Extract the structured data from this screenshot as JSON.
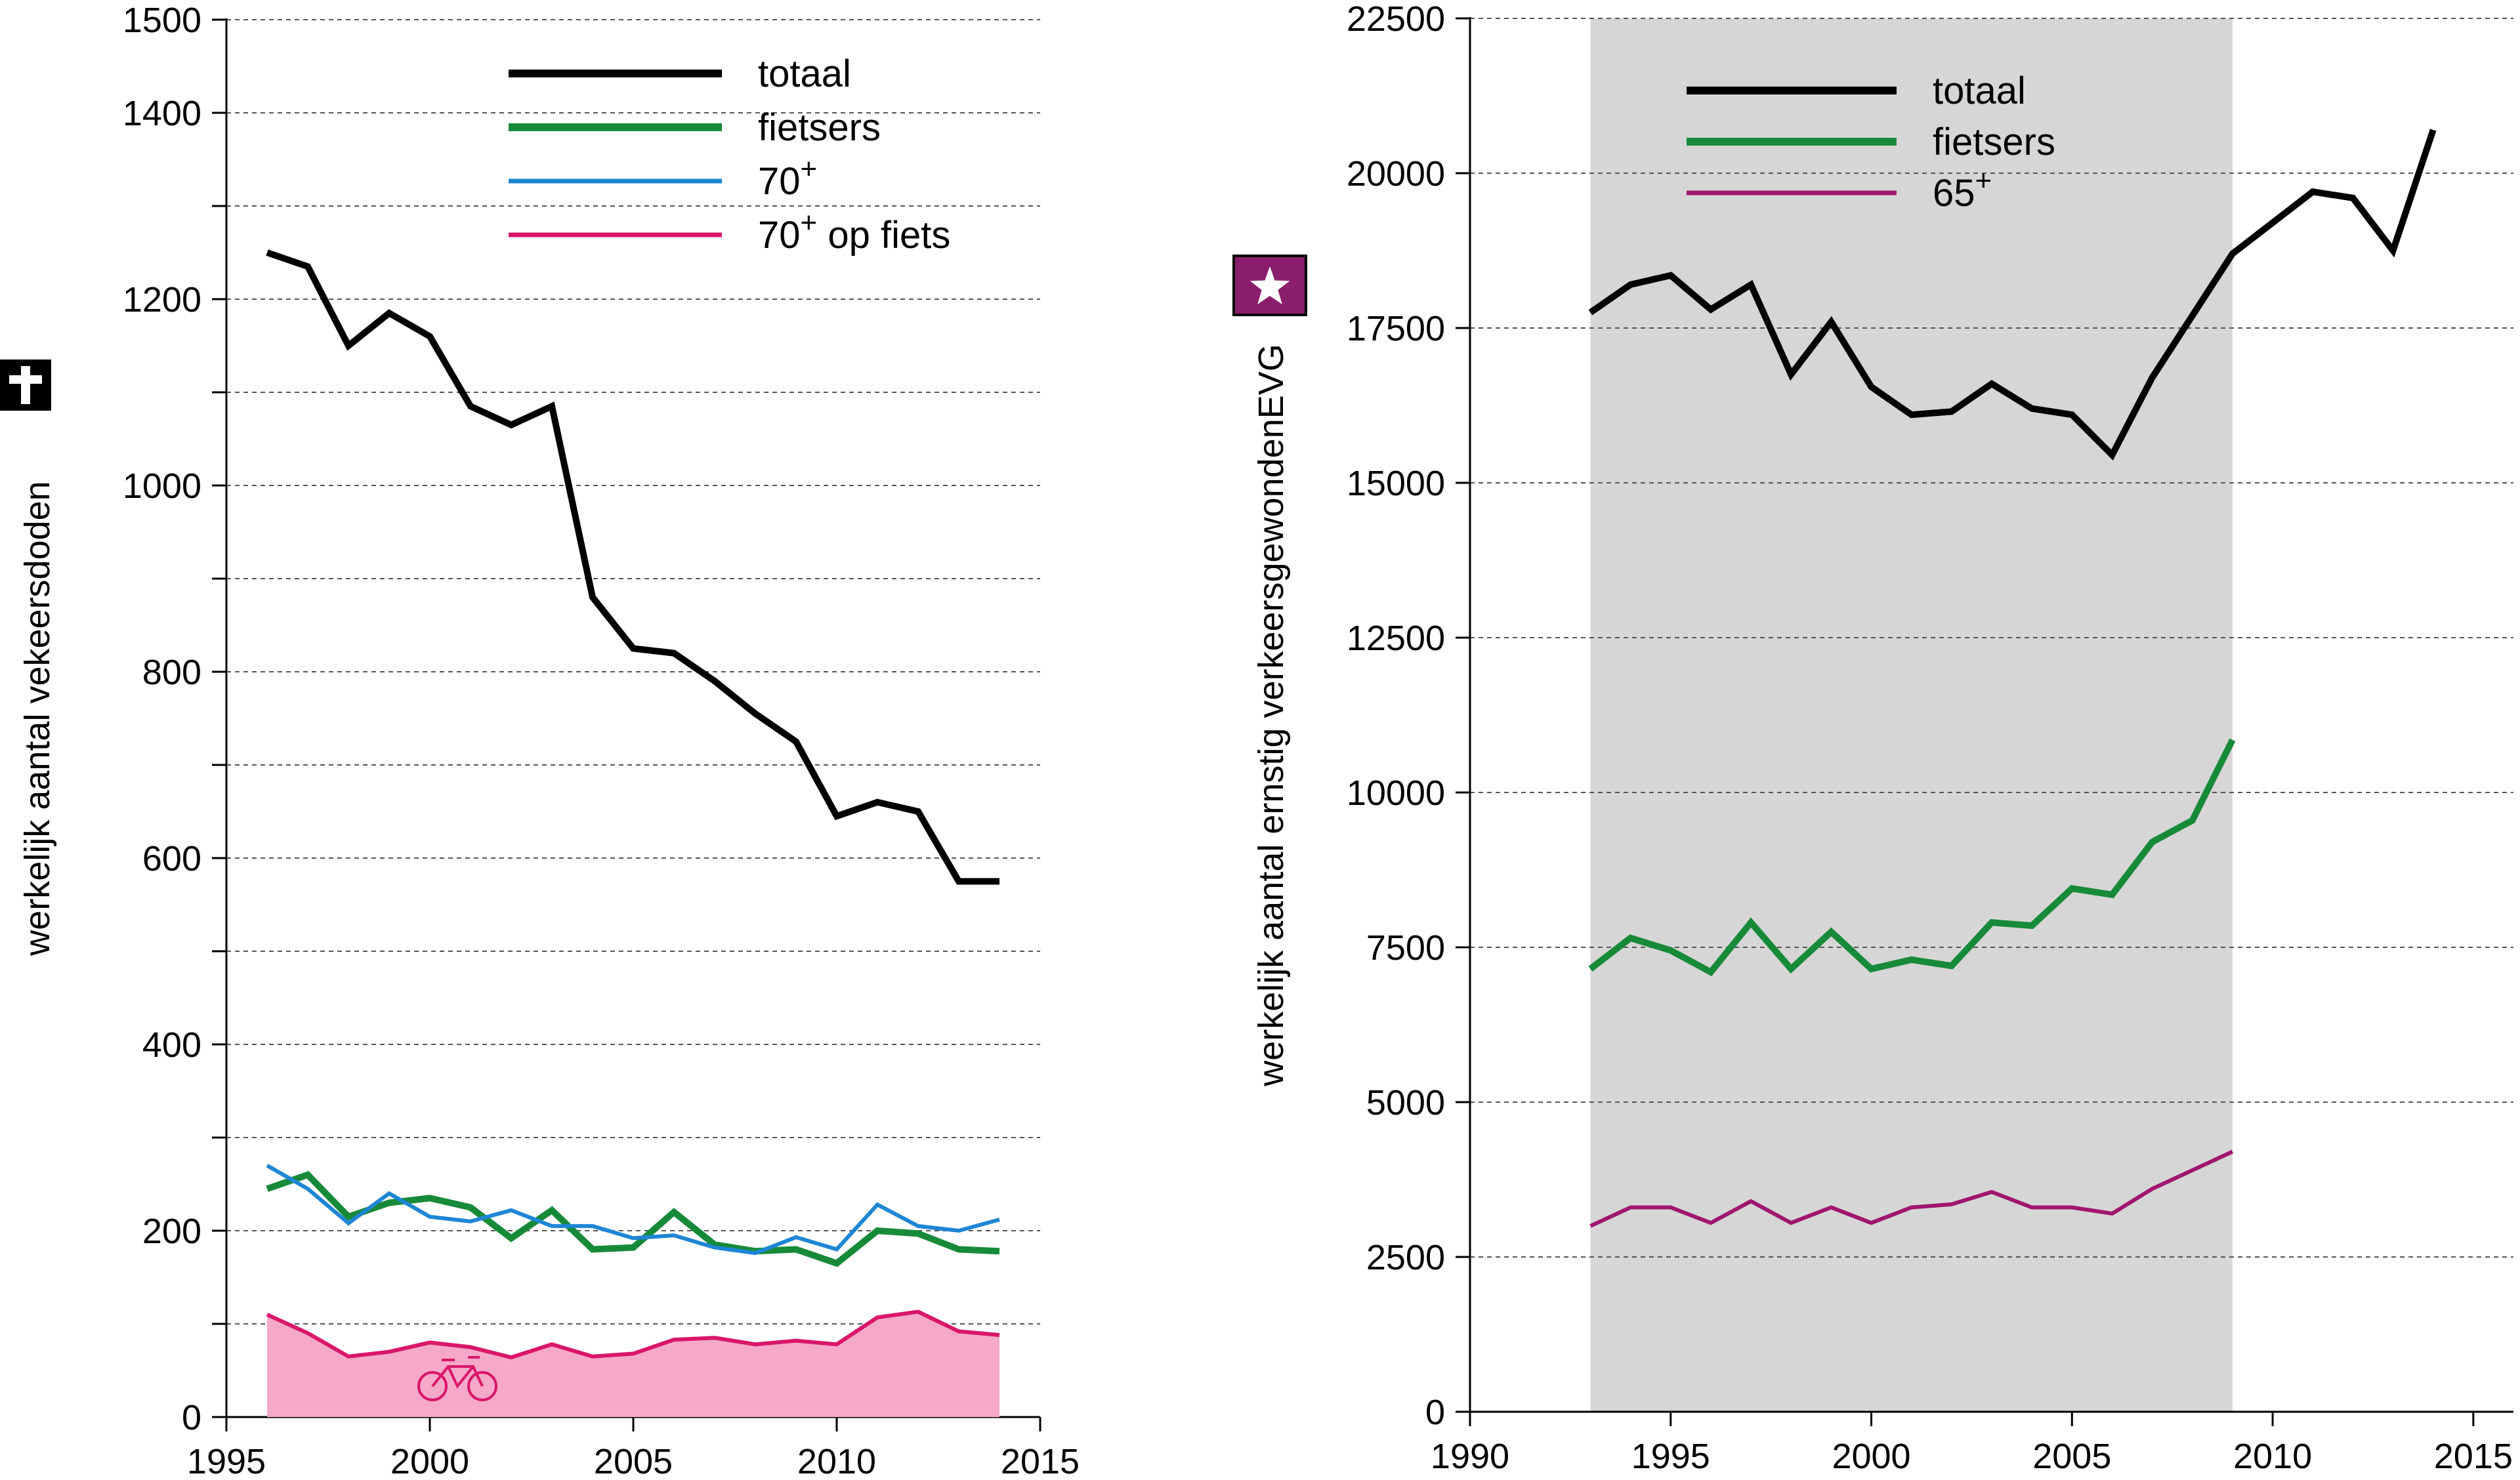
{
  "chart_data": [
    {
      "type": "line",
      "ylabel": "werkelijk aantal vekeersdoden",
      "xlim": [
        1995,
        2015
      ],
      "ylim": [
        0,
        1500
      ],
      "x_ticks": [
        1995,
        2000,
        2005,
        2010,
        2015
      ],
      "x_tick_labels": [
        "1995",
        "2000",
        "2005",
        "2010",
        "2015"
      ],
      "y_ticks": [
        0,
        100,
        200,
        300,
        400,
        500,
        600,
        700,
        800,
        900,
        1000,
        1100,
        1200,
        1300,
        1400,
        1500
      ],
      "y_tick_labels": [
        "0",
        "",
        "200",
        "",
        "400",
        "",
        "600",
        "",
        "800",
        "",
        "1000",
        "",
        "1200",
        "",
        "1400",
        "1500"
      ],
      "grid": "horizontal dashed",
      "legend_position": "top-right",
      "x": [
        1996,
        1997,
        1998,
        1999,
        2000,
        2001,
        2002,
        2003,
        2004,
        2005,
        2006,
        2007,
        2008,
        2009,
        2010,
        2011,
        2012,
        2013,
        2014
      ],
      "series": [
        {
          "name": "totaal",
          "sup": "",
          "suffix": "",
          "color": "#000000",
          "style": "thick",
          "values": [
            1250,
            1235,
            1150,
            1185,
            1160,
            1085,
            1065,
            1085,
            880,
            825,
            820,
            790,
            755,
            725,
            645,
            660,
            650,
            575,
            575
          ]
        },
        {
          "name": "fietsers",
          "sup": "",
          "suffix": "",
          "color": "#178a39",
          "style": "thick",
          "values": [
            245,
            260,
            215,
            230,
            235,
            225,
            192,
            222,
            180,
            182,
            220,
            185,
            178,
            180,
            165,
            200,
            197,
            180,
            178
          ]
        },
        {
          "name": "70",
          "sup": "+",
          "suffix": "",
          "color": "#1e86d4",
          "style": "thin",
          "values": [
            270,
            245,
            208,
            240,
            215,
            210,
            222,
            205,
            205,
            192,
            195,
            182,
            176,
            193,
            180,
            228,
            205,
            200,
            212
          ]
        },
        {
          "name": "70",
          "sup": "+",
          "suffix": " op fiets",
          "color": "#d9166a",
          "style": "area",
          "fill": "#f5a8c8",
          "values": [
            110,
            90,
            65,
            70,
            80,
            75,
            64,
            78,
            65,
            68,
            83,
            85,
            78,
            82,
            78,
            107,
            113,
            92,
            88
          ]
        }
      ],
      "icon": "cross-icon",
      "inset_icon": "bicycle-icon"
    },
    {
      "type": "line",
      "ylabel": "werkelijk aantal ernstig verkeersgewondenEVG",
      "xlim": [
        1990,
        2016
      ],
      "ylim": [
        0,
        22500
      ],
      "x_ticks": [
        1990,
        1995,
        2000,
        2005,
        2010,
        2015
      ],
      "x_tick_labels": [
        "1990",
        "1995",
        "2000",
        "2005",
        "2010",
        "2015"
      ],
      "y_ticks": [
        0,
        2500,
        5000,
        7500,
        10000,
        12500,
        15000,
        17500,
        20000,
        22500
      ],
      "y_tick_labels": [
        "0",
        "2500",
        "5000",
        "7500",
        "10000",
        "12500",
        "15000",
        "17500",
        "20000",
        "22500"
      ],
      "grid": "horizontal dashed",
      "legend_position": "top-left",
      "shaded_range": [
        1993,
        2009
      ],
      "shaded_color": "#d6d6d6",
      "series": [
        {
          "name": "totaal",
          "sup": "",
          "color": "#000000",
          "style": "thick",
          "x": [
            1993,
            1994,
            1995,
            1996,
            1997,
            1998,
            1999,
            2000,
            2001,
            2002,
            2003,
            2004,
            2005,
            2006,
            2007,
            2008,
            2009,
            2010,
            2011,
            2012,
            2013,
            2014
          ],
          "values": [
            17750,
            18200,
            18350,
            17800,
            18200,
            16750,
            17600,
            16550,
            16100,
            16150,
            16600,
            16200,
            16100,
            15450,
            16700,
            17700,
            18700,
            19200,
            19700,
            19600,
            18750,
            20700
          ]
        },
        {
          "name": "fietsers",
          "sup": "",
          "color": "#178a39",
          "style": "thick",
          "x": [
            1993,
            1994,
            1995,
            1996,
            1997,
            1998,
            1999,
            2000,
            2001,
            2002,
            2003,
            2004,
            2005,
            2006,
            2007,
            2008,
            2009
          ],
          "values": [
            7150,
            7650,
            7450,
            7100,
            7900,
            7150,
            7750,
            7150,
            7300,
            7200,
            7900,
            7850,
            8450,
            8350,
            9200,
            9550,
            10850
          ]
        },
        {
          "name": "65",
          "sup": "+",
          "color": "#a0166f",
          "style": "thin",
          "x": [
            1993,
            1994,
            1995,
            1996,
            1997,
            1998,
            1999,
            2000,
            2001,
            2002,
            2003,
            2004,
            2005,
            2006,
            2007,
            2008,
            2009
          ],
          "values": [
            3000,
            3300,
            3300,
            3050,
            3400,
            3050,
            3300,
            3050,
            3300,
            3350,
            3550,
            3300,
            3300,
            3200,
            3600,
            3900,
            4200
          ]
        }
      ],
      "icon": "star-icon"
    }
  ]
}
